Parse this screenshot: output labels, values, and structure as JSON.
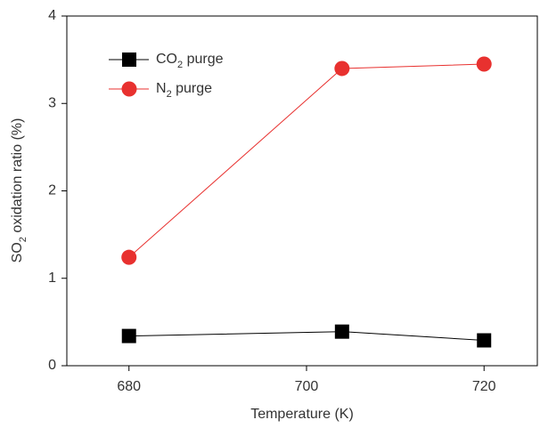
{
  "chart_data": {
    "type": "line",
    "x_label": "Temperature (K)",
    "y_label": "SO2 oxidation ratio (%)",
    "x": [
      680,
      704,
      720
    ],
    "series": [
      {
        "name": "CO2 purge",
        "color": "#000000",
        "marker": "square",
        "values": [
          0.34,
          0.39,
          0.29
        ]
      },
      {
        "name": "N2 purge",
        "color": "#e8312f",
        "marker": "circle",
        "values": [
          1.24,
          3.4,
          3.45
        ]
      }
    ],
    "xlim": [
      673,
      726
    ],
    "xticks": [
      680,
      700,
      720
    ],
    "ylim": [
      0,
      4
    ],
    "yticks": [
      0,
      1,
      2,
      3,
      4
    ],
    "legend": "upper-left"
  }
}
